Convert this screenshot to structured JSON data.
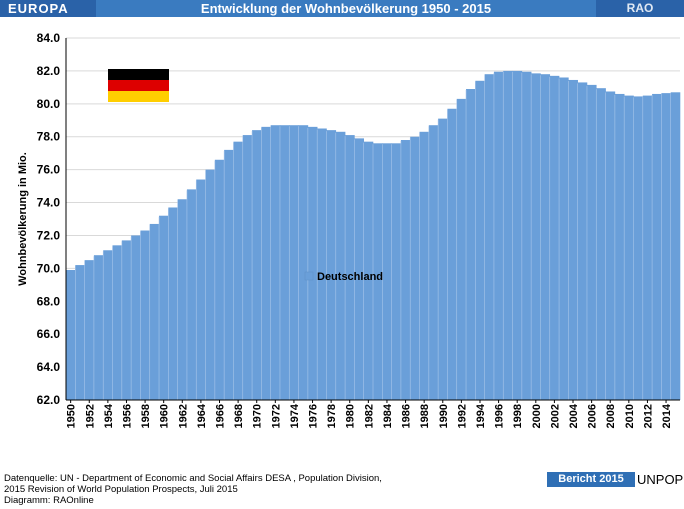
{
  "header": {
    "region": "EUROPA",
    "title": "Entwicklung der Wohnbevölkerung  1950 - 2015",
    "brand": "RAO"
  },
  "chart_data": {
    "type": "area",
    "ylabel": "Wohnbevölkerung in Mio.",
    "ylim": [
      62.0,
      84.0
    ],
    "yticks": [
      "62.0",
      "64.0",
      "66.0",
      "68.0",
      "70.0",
      "72.0",
      "74.0",
      "76.0",
      "78.0",
      "80.0",
      "82.0",
      "84.0"
    ],
    "xticks": [
      "1950",
      "1952",
      "1954",
      "1956",
      "1958",
      "1960",
      "1962",
      "1964",
      "1966",
      "1968",
      "1970",
      "1972",
      "1974",
      "1976",
      "1978",
      "1980",
      "1982",
      "1984",
      "1986",
      "1988",
      "1990",
      "1992",
      "1994",
      "1996",
      "1998",
      "2000",
      "2002",
      "2004",
      "2006",
      "2008",
      "2010",
      "2012",
      "2014"
    ],
    "legend_position": "center",
    "series": [
      {
        "name": "Deutschland",
        "color": "#6a9fd9",
        "x": [
          1950,
          1951,
          1952,
          1953,
          1954,
          1955,
          1956,
          1957,
          1958,
          1959,
          1960,
          1961,
          1962,
          1963,
          1964,
          1965,
          1966,
          1967,
          1968,
          1969,
          1970,
          1971,
          1972,
          1973,
          1974,
          1975,
          1976,
          1977,
          1978,
          1979,
          1980,
          1981,
          1982,
          1983,
          1984,
          1985,
          1986,
          1987,
          1988,
          1989,
          1990,
          1991,
          1992,
          1993,
          1994,
          1995,
          1996,
          1997,
          1998,
          1999,
          2000,
          2001,
          2002,
          2003,
          2004,
          2005,
          2006,
          2007,
          2008,
          2009,
          2010,
          2011,
          2012,
          2013,
          2014,
          2015
        ],
        "values": [
          69.9,
          70.2,
          70.5,
          70.8,
          71.1,
          71.4,
          71.7,
          72.0,
          72.3,
          72.7,
          73.2,
          73.7,
          74.2,
          74.8,
          75.4,
          76.0,
          76.6,
          77.2,
          77.7,
          78.1,
          78.4,
          78.6,
          78.7,
          78.7,
          78.7,
          78.7,
          78.6,
          78.5,
          78.4,
          78.3,
          78.1,
          77.9,
          77.7,
          77.6,
          77.6,
          77.6,
          77.8,
          78.0,
          78.3,
          78.7,
          79.1,
          79.7,
          80.3,
          80.9,
          81.4,
          81.8,
          81.95,
          82.0,
          82.0,
          81.95,
          81.85,
          81.8,
          81.7,
          81.6,
          81.45,
          81.3,
          81.15,
          80.95,
          80.75,
          80.6,
          80.5,
          80.45,
          80.5,
          80.6,
          80.65,
          80.7
        ]
      }
    ]
  },
  "flag": {
    "colors": [
      "#000000",
      "#dd0000",
      "#ffce00"
    ]
  },
  "footer": {
    "source_line1": "Datenquelle: UN -  Department of Economic and Social Affairs DESA , Population Division,",
    "source_line2": "2015 Revision of World Population Prospects, Juli 2015",
    "diagram_line": "Diagramm: RAOnline",
    "report_label": "Bericht 2015",
    "org_label": "UNPOP"
  }
}
